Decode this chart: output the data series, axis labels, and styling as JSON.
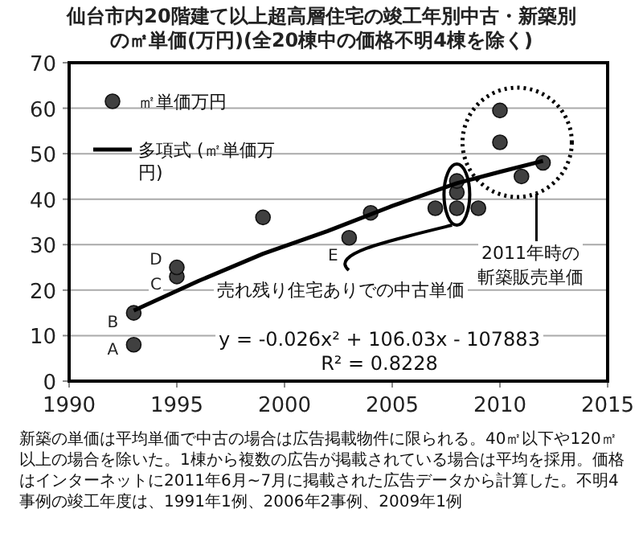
{
  "chart_data": {
    "type": "scatter",
    "title": "仙台市内20階建て以上超高層住宅の竣工年別中古・新築別の㎡単価(万円)(全20棟中の価格不明4棟を除く)",
    "xlim": [
      1990,
      2015
    ],
    "xticks": [
      1990,
      1995,
      2000,
      2005,
      2010,
      2015
    ],
    "ylim": [
      0,
      70
    ],
    "yticks": [
      0,
      10,
      20,
      30,
      40,
      50,
      60,
      70
    ],
    "grid": "y",
    "legend": "top left",
    "series": [
      {
        "name": "㎡単価万円",
        "type": "scatter",
        "marker": "circle",
        "color": "#404040",
        "x": [
          1993,
          1993,
          1995,
          1995,
          1999,
          2003,
          2004,
          2007,
          2008,
          2008,
          2008,
          2009,
          2010,
          2010,
          2011,
          2012
        ],
        "values": [
          8,
          15,
          23,
          25,
          36,
          31.5,
          37,
          38,
          38,
          41.5,
          44,
          38,
          52.5,
          59.5,
          45,
          48
        ]
      },
      {
        "name": "多項式 (㎡単価万円)",
        "type": "line",
        "color": "#000000",
        "x": [
          1993,
          1996,
          1999,
          2002,
          2005,
          2008,
          2010,
          2012
        ],
        "values": [
          15.5,
          22,
          28,
          33,
          38.5,
          43.5,
          46,
          48.4
        ]
      }
    ],
    "annotations": [
      {
        "text": "A",
        "x": 1993,
        "y": 8
      },
      {
        "text": "B",
        "x": 1993,
        "y": 15
      },
      {
        "text": "C",
        "x": 1995,
        "y": 23
      },
      {
        "text": "D",
        "x": 1995,
        "y": 25
      },
      {
        "text": "E",
        "x": 2003,
        "y": 31.5
      },
      "y = -0.026x² + 106.03x - 107883",
      "R² = 0.8228",
      "売れ残り住宅ありでの中古単価",
      "2011年時の斬築販売単価",
      "新築の単価は平均単価で中古の場合は広告掲載物件に限られる。40㎡以下や120㎡以上の場合を除いた。1棟から複数の広告が掲載されている場合は平均を採用。価格はインターネットに2011年6月~7月に掲載された広告データから計算した。不明4事例の竣工年度は、1991年1例、2006年2事例、2009年1例"
    ]
  }
}
